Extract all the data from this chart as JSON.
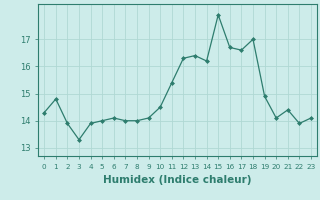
{
  "x": [
    0,
    1,
    2,
    3,
    4,
    5,
    6,
    7,
    8,
    9,
    10,
    11,
    12,
    13,
    14,
    15,
    16,
    17,
    18,
    19,
    20,
    21,
    22,
    23
  ],
  "y": [
    14.3,
    14.8,
    13.9,
    13.3,
    13.9,
    14.0,
    14.1,
    14.0,
    14.0,
    14.1,
    14.5,
    15.4,
    16.3,
    16.4,
    16.2,
    17.9,
    16.7,
    16.6,
    17.0,
    14.9,
    14.1,
    14.4,
    13.9,
    14.1
  ],
  "xlabel": "Humidex (Indice chaleur)",
  "ylim": [
    12.7,
    18.3
  ],
  "yticks": [
    13,
    14,
    15,
    16,
    17
  ],
  "line_color": "#2e7d6e",
  "marker_color": "#2e7d6e",
  "bg_color": "#cdecea",
  "grid_color": "#b0d8d4",
  "tick_color": "#2e7d6e",
  "xlabel_fontsize": 7.5,
  "ytick_fontsize": 6.0,
  "xtick_fontsize": 5.2
}
